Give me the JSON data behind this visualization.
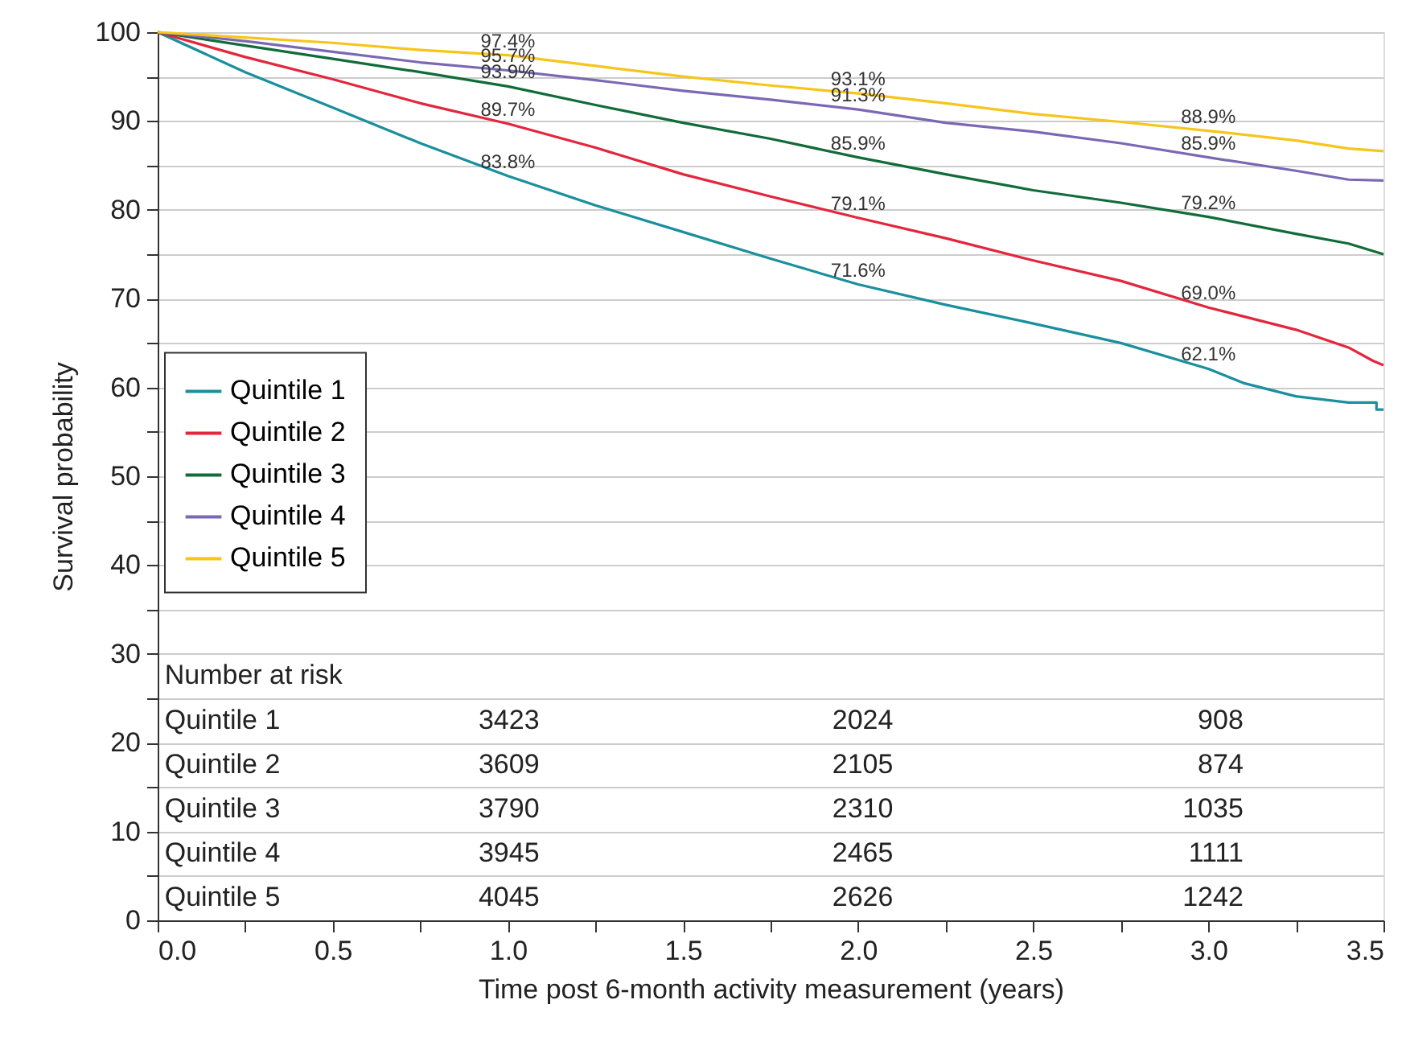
{
  "chart_data": {
    "type": "line",
    "xlabel": "Time post 6-month activity measurement (years)",
    "ylabel": "Survival probability",
    "x": [
      0,
      0.25,
      0.5,
      0.75,
      1,
      1.25,
      1.5,
      1.75,
      2,
      2.25,
      2.5,
      2.75,
      3,
      3.25,
      3.4,
      3.5
    ],
    "series": [
      {
        "name": "Quintile 1",
        "color": "#1a8f9e",
        "x": [
          0,
          0.25,
          0.5,
          0.75,
          1,
          1.25,
          1.5,
          1.75,
          2,
          2.25,
          2.5,
          2.75,
          3,
          3.1,
          3.25,
          3.4,
          3.48,
          3.48,
          3.5
        ],
        "values": [
          100,
          95.5,
          91.5,
          87.5,
          83.8,
          80.5,
          77.5,
          74.5,
          71.6,
          69.3,
          67.2,
          65,
          62.1,
          60.5,
          59,
          58.3,
          58.3,
          57.5,
          57.5
        ]
      },
      {
        "name": "Quintile 2",
        "color": "#e3263e",
        "x": [
          0,
          0.25,
          0.5,
          0.75,
          1,
          1.25,
          1.5,
          1.75,
          2,
          2.25,
          2.5,
          2.75,
          3,
          3.25,
          3.4,
          3.47,
          3.5
        ],
        "values": [
          100,
          97.2,
          94.7,
          92,
          89.7,
          87,
          84,
          81.5,
          79.1,
          76.8,
          74.3,
          72,
          69.0,
          66.5,
          64.5,
          63,
          62.5
        ]
      },
      {
        "name": "Quintile 3",
        "color": "#116b3a",
        "values": [
          100,
          98.5,
          97,
          95.5,
          93.9,
          91.8,
          89.8,
          88,
          85.9,
          84,
          82.2,
          80.8,
          79.2,
          77.3,
          76.2,
          75
        ]
      },
      {
        "name": "Quintile 4",
        "color": "#7b68b5",
        "values": [
          100,
          99,
          97.8,
          96.6,
          95.7,
          94.6,
          93.4,
          92.4,
          91.3,
          89.8,
          88.8,
          87.5,
          85.9,
          84.4,
          83.4,
          83.3
        ]
      },
      {
        "name": "Quintile 5",
        "color": "#f7c51a",
        "values": [
          100,
          99.4,
          98.8,
          98,
          97.4,
          96.2,
          95,
          94,
          93.1,
          92,
          90.8,
          89.9,
          88.9,
          87.8,
          86.9,
          86.6
        ]
      }
    ],
    "annotations": [
      {
        "text": "97.4%",
        "x": 1,
        "y": 97.4
      },
      {
        "text": "95.7%",
        "x": 1,
        "y": 95.7
      },
      {
        "text": "93.9%",
        "x": 1,
        "y": 93.9
      },
      {
        "text": "89.7%",
        "x": 1,
        "y": 89.7
      },
      {
        "text": "83.8%",
        "x": 1,
        "y": 83.8
      },
      {
        "text": "93.1%",
        "x": 2,
        "y": 93.1
      },
      {
        "text": "91.3%",
        "x": 2,
        "y": 91.3
      },
      {
        "text": "85.9%",
        "x": 2,
        "y": 85.9
      },
      {
        "text": "79.1%",
        "x": 2,
        "y": 79.1
      },
      {
        "text": "71.6%",
        "x": 2,
        "y": 71.6
      },
      {
        "text": "88.9%",
        "x": 3,
        "y": 88.9
      },
      {
        "text": "85.9%",
        "x": 3,
        "y": 85.9
      },
      {
        "text": "79.2%",
        "x": 3,
        "y": 79.2
      },
      {
        "text": "69.0%",
        "x": 3,
        "y": 69.0
      },
      {
        "text": "62.1%",
        "x": 3,
        "y": 62.1
      },
      "Number at risk",
      "Quintile 1",
      "3423",
      "2024",
      "908",
      "Quintile 2",
      "3609",
      "2105",
      "874",
      "Quintile 3",
      "3790",
      "2310",
      "1035",
      "Quintile 4",
      "3945",
      "2465",
      "1111",
      "Quintile 5",
      "4045",
      "2626",
      "1242"
    ],
    "xlim": [
      0,
      3.5
    ],
    "xticks": [
      {
        "value": 0,
        "label": "0.0"
      },
      {
        "value": 0.25,
        "label": null
      },
      {
        "value": 0.5,
        "label": "0.5"
      },
      {
        "value": 0.75,
        "label": null
      },
      {
        "value": 1,
        "label": "1.0"
      },
      {
        "value": 1.25,
        "label": null
      },
      {
        "value": 1.5,
        "label": "1.5"
      },
      {
        "value": 1.75,
        "label": null
      },
      {
        "value": 2,
        "label": "2.0"
      },
      {
        "value": 2.25,
        "label": null
      },
      {
        "value": 2.5,
        "label": "2.5"
      },
      {
        "value": 2.75,
        "label": null
      },
      {
        "value": 3,
        "label": "3.0"
      },
      {
        "value": 3.25,
        "label": null
      },
      {
        "value": 3.5,
        "label": "3.5"
      }
    ],
    "ylim": [
      0,
      100
    ],
    "yticks": [
      0,
      {
        "value": 5,
        "label": null
      },
      10,
      {
        "value": 15,
        "label": null
      },
      20,
      {
        "value": 25,
        "label": null
      },
      30,
      {
        "value": 35,
        "label": null
      },
      40,
      {
        "value": 45,
        "label": null
      },
      50,
      {
        "value": 55,
        "label": null
      },
      60,
      {
        "value": 65,
        "label": null
      },
      70,
      {
        "value": 75,
        "label": null
      },
      80,
      {
        "value": 85,
        "label": null
      },
      90,
      {
        "value": 95,
        "label": null
      },
      100
    ],
    "grid": "y",
    "legend": "left",
    "marker": "none",
    "line_style": "solid"
  }
}
